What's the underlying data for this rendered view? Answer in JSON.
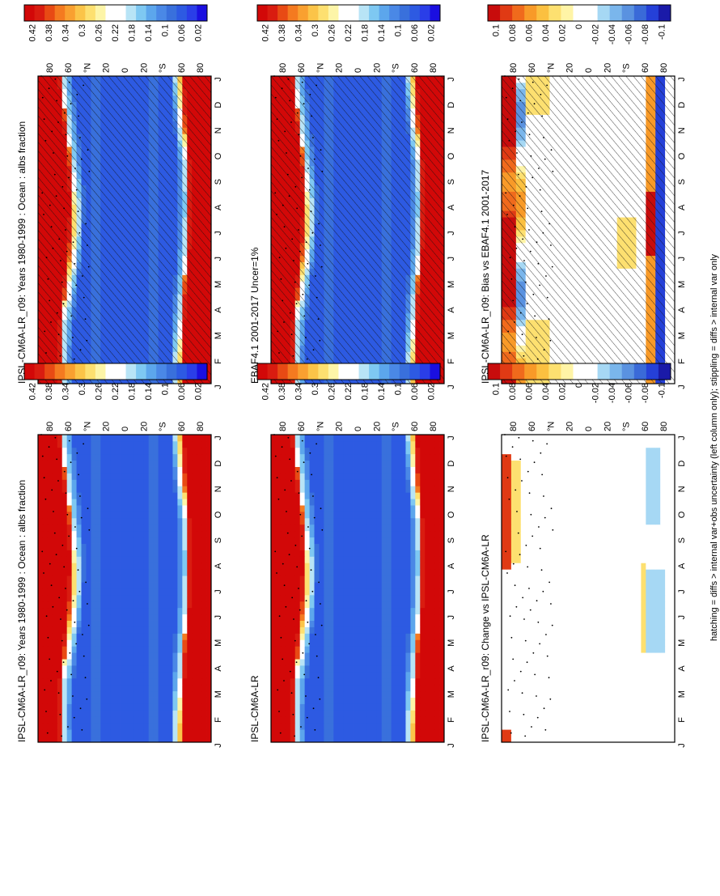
{
  "footnote": "hatching = diffs > internal var+obs uncertainty (left column only); stippling = diffs > internal var only",
  "colors": {
    "abs_scale": [
      "#1a0fe0",
      "#2a3ee8",
      "#2d5ae2",
      "#3970dc",
      "#4a88e6",
      "#5ca6ec",
      "#7ec8f2",
      "#b8e4f6",
      "#ffffff",
      "#ffffff",
      "#fdf5a8",
      "#fde070",
      "#fbc448",
      "#f9a030",
      "#f47a20",
      "#e84a14",
      "#d91c10",
      "#d20808"
    ],
    "diff_scale": [
      "#1a1aa8",
      "#2540d8",
      "#3a6ad8",
      "#5a92e0",
      "#7ab6ec",
      "#a6d8f4",
      "#ffffff",
      "#ffffff",
      "#fff4a6",
      "#fde070",
      "#fbc040",
      "#f89a28",
      "#f06a1c",
      "#e03a14",
      "#c80c0c"
    ]
  },
  "chart_data": [
    {
      "type": "heatmap",
      "id": "p1",
      "title": "IPSL-CM6A-LR_r09: Years 1980-1999 : Ocean : albs fraction",
      "x_labels": [
        "J",
        "F",
        "M",
        "A",
        "M",
        "J",
        "J",
        "A",
        "S",
        "O",
        "N",
        "D",
        "J"
      ],
      "y_labels": [
        "80",
        "60",
        "°N",
        "20",
        "0",
        "20",
        "°S",
        "60",
        "80"
      ],
      "y_range": [
        -90,
        90
      ],
      "colorbar": {
        "labels": [
          "0.02",
          "0.06",
          "0.1",
          "0.14",
          "0.18",
          "0.22",
          "0.26",
          "0.3",
          "0.34",
          "0.38",
          "0.42"
        ],
        "min": 0.0,
        "max": 0.44
      },
      "field": "abs",
      "hatching": true,
      "stippling": true
    },
    {
      "type": "heatmap",
      "id": "p2",
      "title": "EBAF4.1 2001-2017 Uncer=1%",
      "x_labels": [
        "J",
        "F",
        "M",
        "A",
        "M",
        "J",
        "J",
        "A",
        "S",
        "O",
        "N",
        "D",
        "J"
      ],
      "y_labels": [
        "80",
        "60",
        "°N",
        "20",
        "0",
        "20",
        "°S",
        "60",
        "80"
      ],
      "y_range": [
        -90,
        90
      ],
      "colorbar": {
        "labels": [
          "0.02",
          "0.06",
          "0.1",
          "0.14",
          "0.18",
          "0.22",
          "0.26",
          "0.3",
          "0.34",
          "0.38",
          "0.42"
        ],
        "min": 0.0,
        "max": 0.44
      },
      "field": "abs",
      "hatching": true,
      "stippling": true
    },
    {
      "type": "heatmap",
      "id": "p3",
      "title": "IPSL-CM6A-LR_r09: Bias vs EBAF4.1 2001-2017",
      "x_labels": [
        "J",
        "F",
        "M",
        "A",
        "M",
        "J",
        "J",
        "A",
        "S",
        "O",
        "N",
        "D",
        "J"
      ],
      "y_labels": [
        "80",
        "60",
        "°N",
        "20",
        "0",
        "20",
        "°S",
        "60",
        "80"
      ],
      "y_range": [
        -90,
        90
      ],
      "colorbar": {
        "labels": [
          "-0.1",
          "-0.08",
          "-0.06",
          "-0.04",
          "-0.02",
          "0",
          "0.02",
          "0.04",
          "0.06",
          "0.08",
          "0.1"
        ],
        "min": -0.12,
        "max": 0.12
      },
      "field": "bias",
      "hatching": true,
      "stippling": true
    },
    {
      "type": "heatmap",
      "id": "p4",
      "title": "IPSL-CM6A-LR_r09: Years 1980-1999 : Ocean : albs fraction",
      "x_labels": [
        "J",
        "F",
        "M",
        "A",
        "M",
        "J",
        "J",
        "A",
        "S",
        "O",
        "N",
        "D",
        "J"
      ],
      "y_labels": [
        "80",
        "60",
        "°N",
        "20",
        "0",
        "20",
        "°S",
        "60",
        "80"
      ],
      "y_range": [
        -90,
        90
      ],
      "colorbar": {
        "labels": [
          "0.02",
          "0.06",
          "0.1",
          "0.14",
          "0.18",
          "0.22",
          "0.26",
          "0.3",
          "0.34",
          "0.38",
          "0.42"
        ],
        "min": 0.0,
        "max": 0.44
      },
      "field": "abs",
      "hatching": false,
      "stippling": true
    },
    {
      "type": "heatmap",
      "id": "p5",
      "title": "IPSL-CM6A-LR",
      "x_labels": [
        "J",
        "F",
        "M",
        "A",
        "M",
        "J",
        "J",
        "A",
        "S",
        "O",
        "N",
        "D",
        "J"
      ],
      "y_labels": [
        "80",
        "60",
        "°N",
        "20",
        "0",
        "20",
        "°S",
        "60",
        "80"
      ],
      "y_range": [
        -90,
        90
      ],
      "colorbar": {
        "labels": [
          "0.02",
          "0.06",
          "0.1",
          "0.14",
          "0.18",
          "0.22",
          "0.26",
          "0.3",
          "0.34",
          "0.38",
          "0.42"
        ],
        "min": 0.0,
        "max": 0.44
      },
      "field": "abs",
      "hatching": false,
      "stippling": true
    },
    {
      "type": "heatmap",
      "id": "p6",
      "title": "IPSL-CM6A-LR_r09: Change vs IPSL-CM6A-LR",
      "x_labels": [
        "J",
        "F",
        "M",
        "A",
        "M",
        "J",
        "J",
        "A",
        "S",
        "O",
        "N",
        "D",
        "J"
      ],
      "y_labels": [
        "80",
        "60",
        "°N",
        "20",
        "0",
        "20",
        "°S",
        "60",
        "80"
      ],
      "y_range": [
        -90,
        90
      ],
      "colorbar": {
        "labels": [
          "-0.1",
          "-0.08",
          "-0.06",
          "-0.04",
          "-0.02",
          "0",
          "0.02",
          "0.04",
          "0.06",
          "0.08",
          "0.1"
        ],
        "min": -0.12,
        "max": 0.12
      },
      "field": "change",
      "hatching": false,
      "stippling": true
    }
  ]
}
